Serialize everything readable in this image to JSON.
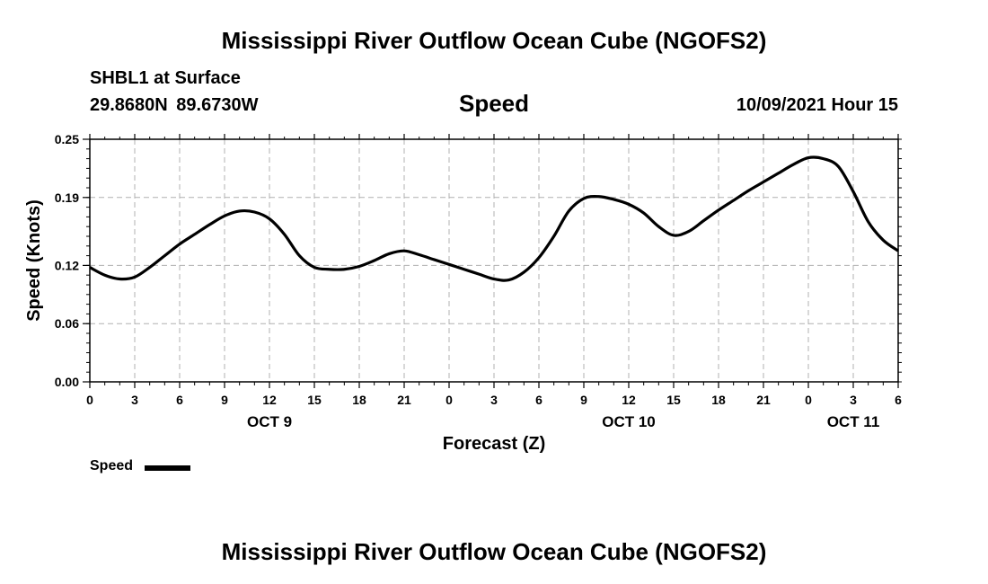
{
  "header": {
    "title": "Mississippi River Outflow Ocean Cube (NGOFS2)",
    "station": "SHBL1 at Surface",
    "coordinates": "29.8680N  89.6730W",
    "variable": "Speed",
    "datetime": "10/09/2021 Hour 15"
  },
  "footer": {
    "title": "Mississippi River Outflow Ocean Cube (NGOFS2)"
  },
  "chart_data": {
    "type": "line",
    "title": "Speed",
    "xlabel": "Forecast (Z)",
    "ylabel": "Speed (Knots)",
    "xlim": [
      0,
      54
    ],
    "ylim": [
      0,
      0.25
    ],
    "yticks": [
      0.0,
      0.06,
      0.12,
      0.19,
      0.25
    ],
    "ytick_labels": [
      "0.00",
      "0.06",
      "0.12",
      "0.19",
      "0.25"
    ],
    "xticks": [
      0,
      3,
      6,
      9,
      12,
      15,
      18,
      21,
      24,
      27,
      30,
      33,
      36,
      39,
      42,
      45,
      48,
      51,
      54
    ],
    "xtick_labels": [
      "0",
      "3",
      "6",
      "9",
      "12",
      "15",
      "18",
      "21",
      "0",
      "3",
      "6",
      "9",
      "12",
      "15",
      "18",
      "21",
      "0",
      "3",
      "6"
    ],
    "date_labels": [
      {
        "x": 12,
        "label": "OCT 9"
      },
      {
        "x": 36,
        "label": "OCT 10"
      },
      {
        "x": 51,
        "label": "OCT 11"
      }
    ],
    "grid": true,
    "legend": "bottom-left",
    "series": [
      {
        "name": "Speed",
        "color": "#000000",
        "x": [
          0,
          1,
          2,
          3,
          4,
          5,
          6,
          7,
          8,
          9,
          10,
          11,
          12,
          13,
          14,
          15,
          16,
          17,
          18,
          19,
          20,
          21,
          22,
          23,
          24,
          25,
          26,
          27,
          28,
          29,
          30,
          31,
          32,
          33,
          34,
          35,
          36,
          37,
          38,
          39,
          40,
          41,
          42,
          43,
          44,
          45,
          46,
          47,
          48,
          49,
          50,
          51,
          52,
          53,
          54
        ],
        "values": [
          0.118,
          0.11,
          0.106,
          0.108,
          0.118,
          0.13,
          0.142,
          0.152,
          0.162,
          0.171,
          0.176,
          0.175,
          0.168,
          0.152,
          0.13,
          0.118,
          0.116,
          0.116,
          0.119,
          0.125,
          0.132,
          0.135,
          0.131,
          0.126,
          0.121,
          0.116,
          0.111,
          0.106,
          0.105,
          0.113,
          0.128,
          0.15,
          0.176,
          0.189,
          0.191,
          0.188,
          0.183,
          0.174,
          0.16,
          0.151,
          0.155,
          0.166,
          0.177,
          0.187,
          0.197,
          0.206,
          0.215,
          0.224,
          0.231,
          0.23,
          0.222,
          0.196,
          0.165,
          0.146,
          0.135
        ]
      }
    ],
    "legend_label": "Speed"
  }
}
